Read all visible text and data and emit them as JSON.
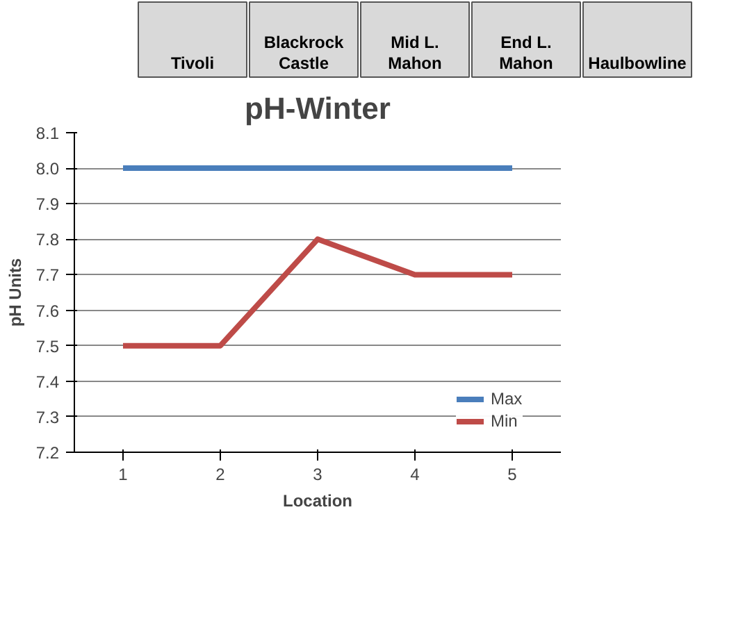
{
  "chart_data": {
    "type": "line",
    "title": "pH-Winter",
    "xlabel": "Location",
    "ylabel": "pH Units",
    "annotations": [
      "Tivoli",
      "Blackrock Castle",
      "Mid L. Mahon",
      "End L. Mahon",
      "Haulbowline"
    ],
    "categories": [
      "1",
      "2",
      "3",
      "4",
      "5"
    ],
    "series": [
      {
        "name": "Max",
        "color": "#4a7ebb",
        "values": [
          8.0,
          8.0,
          8.0,
          8.0,
          8.0
        ]
      },
      {
        "name": "Min",
        "color": "#be4b48",
        "values": [
          7.5,
          7.5,
          7.8,
          7.7,
          7.7
        ]
      }
    ],
    "ylim": [
      7.2,
      8.1
    ],
    "yticks": [
      7.2,
      7.3,
      7.4,
      7.5,
      7.6,
      7.7,
      7.8,
      7.9,
      {
        "value": 8.0,
        "label": "8.0"
      },
      8.1
    ],
    "grid": "y",
    "legend": "right",
    "marker": "none",
    "line_style": "solid"
  }
}
